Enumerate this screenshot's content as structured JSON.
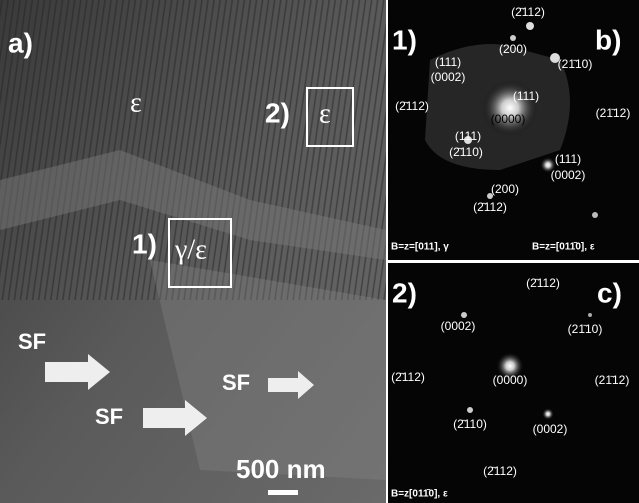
{
  "panel_a": {
    "label": "a)",
    "matrix_phase": "ε",
    "region_2_number": "2)",
    "region_2_phase": "ε",
    "region_1_number": "1)",
    "region_1_phase": "γ/ε",
    "sf_labels": [
      "SF",
      "SF",
      "SF"
    ],
    "scale_bar": "500 nm"
  },
  "panel_b": {
    "number": "1)",
    "label": "b)",
    "spots": [
      "(2̄112)",
      "(200)",
      "(111)",
      "(0002)",
      "(21̄10)",
      "(111)",
      "(2̄112)",
      "(21̄12)",
      "(0000)",
      "(111)",
      "(2̄110)",
      "(111)",
      "(0002)",
      "(200)",
      "(2̄112)"
    ],
    "zone_axis_gamma": "B=z=[011], γ",
    "zone_axis_epsilon": "B=z=[011̄0], ε"
  },
  "panel_c": {
    "number": "2)",
    "label": "c)",
    "spots": [
      "(2̄112)",
      "(0002)",
      "(21̄10)",
      "(2̄112)",
      "(0000)",
      "(21̄12)",
      "(2̄110)",
      "(0002)",
      "(2̄112)"
    ],
    "zone_axis": "B=z[011̄0], ε"
  }
}
